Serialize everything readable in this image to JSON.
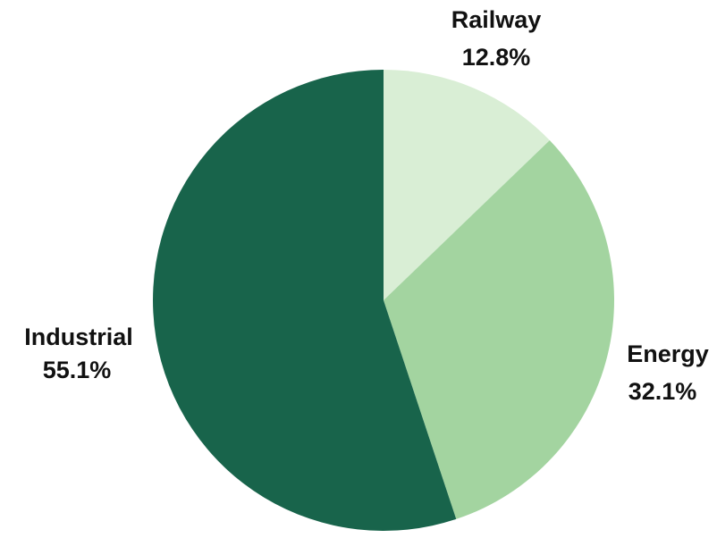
{
  "chart_data": {
    "type": "pie",
    "title": "",
    "start_angle": "12 o'clock",
    "direction": "clockwise",
    "legend": "none",
    "slices": [
      {
        "label": "Railway",
        "value": 12.8,
        "value_label": "12.8%",
        "color": "#d9eed5"
      },
      {
        "label": "Energy",
        "value": 32.1,
        "value_label": "32.1%",
        "color": "#a3d4a0"
      },
      {
        "label": "Industrial",
        "value": 55.1,
        "value_label": "55.1%",
        "color": "#18644b"
      }
    ]
  }
}
